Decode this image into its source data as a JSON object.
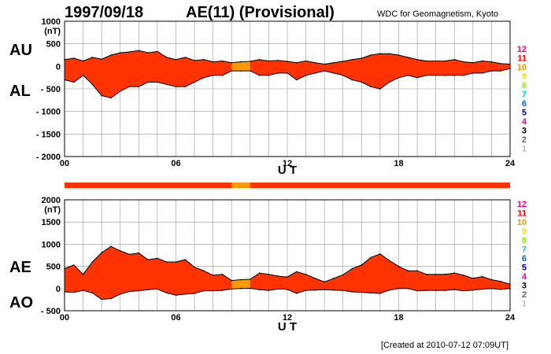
{
  "header": {
    "date": "1997/09/18",
    "title": "AE(11) (Provisional)",
    "source": "WDC for Geomagnetism, Kyoto"
  },
  "footer": {
    "created": "[Created at 2010-07-12 07:09UT]"
  },
  "colors": {
    "fill_main": "#ff3300",
    "fill_highlight": "#ff9900",
    "grid": "#999999",
    "trace": "#000000"
  },
  "station_scale": [
    {
      "label": "12",
      "color": "#ff0080"
    },
    {
      "label": "11",
      "color": "#ff0000"
    },
    {
      "label": "10",
      "color": "#ff9900"
    },
    {
      "label": "9",
      "color": "#ffdd00"
    },
    {
      "label": "8",
      "color": "#99ee00"
    },
    {
      "label": "7",
      "color": "#00cccc"
    },
    {
      "label": "6",
      "color": "#0066ff"
    },
    {
      "label": "5",
      "color": "#0000cc"
    },
    {
      "label": "4",
      "color": "#cc00cc"
    },
    {
      "label": "3",
      "color": "#000000"
    },
    {
      "label": "2",
      "color": "#666666"
    },
    {
      "label": "1",
      "color": "#bbbbbb"
    }
  ],
  "chart_data": [
    {
      "type": "area",
      "name": "AU/AL",
      "side_labels": [
        "AU",
        "AL"
      ],
      "xlabel": "U T",
      "ylabel": "(nT)",
      "xlim": [
        0,
        24
      ],
      "ylim": [
        -2000,
        1000
      ],
      "x_ticks": [
        0,
        6,
        12,
        18,
        24
      ],
      "x_tick_labels": [
        "00",
        "06",
        "12",
        "18",
        "24"
      ],
      "y_ticks": [
        1000,
        500,
        0,
        -500,
        -1000,
        -1500,
        -2000
      ],
      "y_tick_labels": [
        "1000",
        "500",
        "0",
        "- 500",
        "- 1000",
        "- 1500",
        "- 2000"
      ],
      "highlight_range": [
        9.0,
        10.0
      ],
      "x": [
        0,
        0.5,
        1,
        1.5,
        2,
        2.5,
        3,
        3.5,
        4,
        4.5,
        5,
        5.5,
        6,
        6.5,
        7,
        7.5,
        8,
        8.5,
        9,
        9.5,
        10,
        10.5,
        11,
        11.5,
        12,
        12.5,
        13,
        13.5,
        14,
        14.5,
        15,
        15.5,
        16,
        16.5,
        17,
        17.5,
        18,
        18.5,
        19,
        19.5,
        20,
        20.5,
        21,
        21.5,
        22,
        22.5,
        23,
        23.5,
        24
      ],
      "series": [
        {
          "name": "AU",
          "values": [
            150,
            180,
            120,
            200,
            160,
            250,
            300,
            320,
            350,
            300,
            330,
            200,
            150,
            200,
            130,
            150,
            100,
            120,
            80,
            100,
            110,
            150,
            120,
            130,
            110,
            80,
            120,
            80,
            50,
            80,
            110,
            150,
            180,
            250,
            280,
            280,
            250,
            200,
            150,
            120,
            120,
            120,
            150,
            100,
            80,
            120,
            100,
            60,
            50
          ]
        },
        {
          "name": "AL",
          "values": [
            -300,
            -350,
            -200,
            -400,
            -650,
            -700,
            -550,
            -450,
            -450,
            -350,
            -350,
            -400,
            -450,
            -450,
            -350,
            -250,
            -200,
            -200,
            -100,
            -100,
            -100,
            -200,
            -200,
            -150,
            -150,
            -300,
            -200,
            -150,
            -100,
            -150,
            -200,
            -300,
            -350,
            -450,
            -500,
            -350,
            -250,
            -200,
            -250,
            -200,
            -200,
            -200,
            -200,
            -200,
            -150,
            -150,
            -100,
            -100,
            -50
          ]
        }
      ]
    },
    {
      "type": "area",
      "name": "AE/AO",
      "side_labels": [
        "AE",
        "AO"
      ],
      "xlabel": "U T",
      "ylabel": "(nT)",
      "xlim": [
        0,
        24
      ],
      "ylim": [
        -500,
        2000
      ],
      "x_ticks": [
        0,
        6,
        12,
        18,
        24
      ],
      "x_tick_labels": [
        "00",
        "06",
        "12",
        "18",
        "24"
      ],
      "y_ticks": [
        2000,
        1500,
        1000,
        500,
        0,
        -500
      ],
      "y_tick_labels": [
        "2000",
        "1500",
        "1000",
        "500",
        "0",
        "- 500"
      ],
      "highlight_range": [
        9.0,
        10.0
      ],
      "x": [
        0,
        0.5,
        1,
        1.5,
        2,
        2.5,
        3,
        3.5,
        4,
        4.5,
        5,
        5.5,
        6,
        6.5,
        7,
        7.5,
        8,
        8.5,
        9,
        9.5,
        10,
        10.5,
        11,
        11.5,
        12,
        12.5,
        13,
        13.5,
        14,
        14.5,
        15,
        15.5,
        16,
        16.5,
        17,
        17.5,
        18,
        18.5,
        19,
        19.5,
        20,
        20.5,
        21,
        21.5,
        22,
        22.5,
        23,
        23.5,
        24
      ],
      "series": [
        {
          "name": "AE",
          "values": [
            450,
            530,
            320,
            600,
            810,
            950,
            850,
            770,
            800,
            650,
            680,
            600,
            600,
            650,
            480,
            400,
            300,
            320,
            180,
            200,
            210,
            350,
            320,
            280,
            260,
            380,
            320,
            230,
            150,
            230,
            310,
            450,
            530,
            700,
            780,
            630,
            500,
            400,
            400,
            320,
            320,
            320,
            350,
            300,
            230,
            270,
            200,
            160,
            100
          ]
        },
        {
          "name": "AO",
          "values": [
            -75,
            -85,
            -40,
            -100,
            -245,
            -225,
            -125,
            -65,
            -50,
            -25,
            -10,
            -100,
            -150,
            -125,
            -110,
            -50,
            -50,
            -40,
            -10,
            0,
            5,
            -25,
            -40,
            -10,
            -20,
            -110,
            -40,
            -35,
            -25,
            -35,
            -45,
            -75,
            -85,
            -100,
            -110,
            -35,
            0,
            0,
            -50,
            -40,
            -40,
            -40,
            -25,
            -50,
            -35,
            -15,
            0,
            -20,
            0
          ]
        }
      ]
    }
  ]
}
